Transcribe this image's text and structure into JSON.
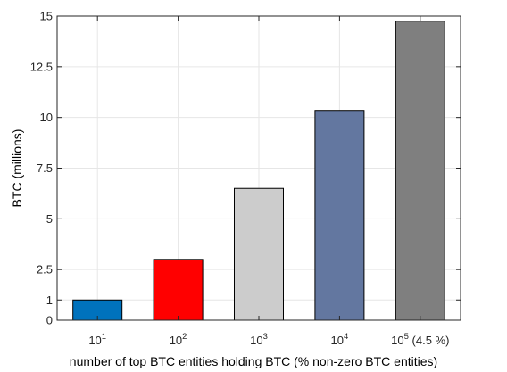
{
  "chart_data": {
    "type": "bar",
    "categories": [
      {
        "base": "10",
        "exp": "1",
        "suffix": ""
      },
      {
        "base": "10",
        "exp": "2",
        "suffix": ""
      },
      {
        "base": "10",
        "exp": "3",
        "suffix": ""
      },
      {
        "base": "10",
        "exp": "4",
        "suffix": ""
      },
      {
        "base": "10",
        "exp": "5",
        "suffix": " (4.5 %)"
      }
    ],
    "values": [
      1.0,
      3.0,
      6.5,
      10.35,
      14.75
    ],
    "bar_colors": [
      "#0072BD",
      "#FF0000",
      "#CCCCCC",
      "#6377A0",
      "#7F7F7F"
    ],
    "xlabel": "number of top BTC entities holding BTC (% non-zero BTC entities)",
    "ylabel": "BTC (millions)",
    "ylim": [
      0,
      15
    ],
    "yticks": [
      0,
      1,
      2.5,
      5,
      7.5,
      10,
      12.5,
      15
    ],
    "ytick_labels": [
      "0",
      "1",
      "2.5",
      "5",
      "7.5",
      "10",
      "12.5",
      "15"
    ],
    "grid": true
  }
}
